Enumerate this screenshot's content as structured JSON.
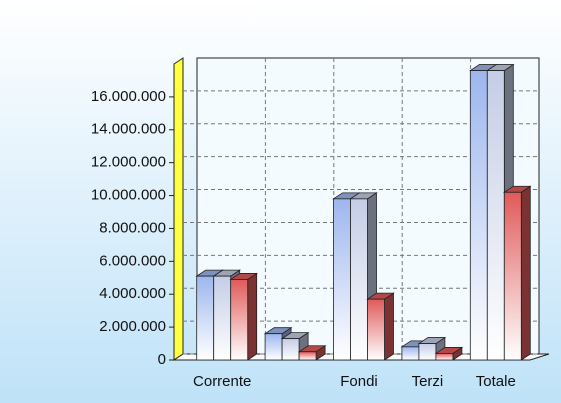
{
  "chart_data": {
    "type": "bar3d",
    "categories": [
      "Corrente",
      null,
      "Fondi",
      "Terzi",
      "Totale"
    ],
    "series": [
      {
        "color": "#9db6ee",
        "values": [
          5100000,
          1600000,
          9800000,
          800000,
          17600000
        ]
      },
      {
        "color": "#c4cde6",
        "values": [
          5100000,
          1300000,
          9800000,
          1000000,
          17600000
        ]
      },
      {
        "color": "#e05a5a",
        "values": [
          4900000,
          500000,
          3700000,
          400000,
          10200000
        ]
      }
    ],
    "ylim": [
      0,
      18000000
    ],
    "yticks": [
      0,
      {
        "value": 2000000,
        "label": "2.000.000"
      },
      {
        "value": 4000000,
        "label": "4.000.000"
      },
      {
        "value": 6000000,
        "label": "6.000.000"
      },
      {
        "value": 8000000,
        "label": "8.000.000"
      },
      {
        "value": 10000000,
        "label": "10.000.000"
      },
      {
        "value": 12000000,
        "label": "12.000.000"
      },
      {
        "value": 14000000,
        "label": "14.000.000"
      },
      {
        "value": 16000000,
        "label": "16.000.000"
      }
    ],
    "grid": true
  }
}
